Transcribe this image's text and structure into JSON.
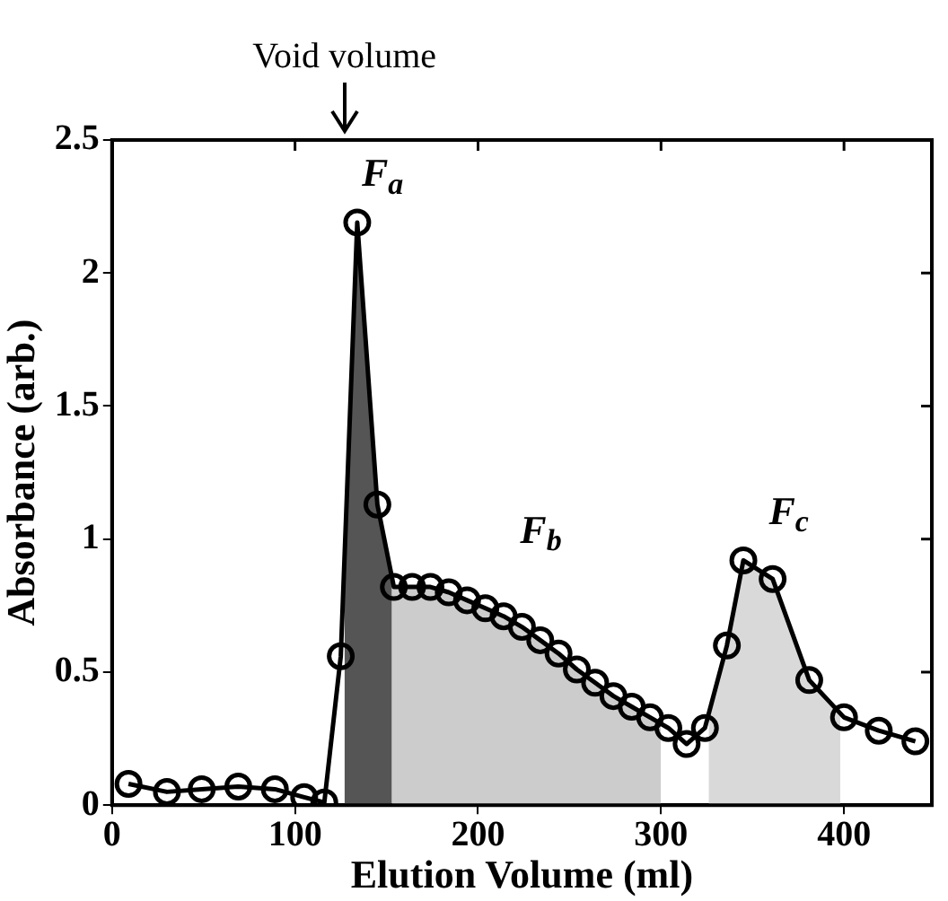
{
  "chart_data": {
    "type": "line",
    "xlabel": "Elution Volume (ml)",
    "ylabel": "Absorbance (arb.)",
    "x": [
      9,
      30,
      49,
      69,
      89,
      105,
      116,
      125,
      134,
      145,
      154,
      164,
      174,
      184,
      194,
      204,
      214,
      224,
      234,
      244,
      254,
      264,
      274,
      284,
      294,
      304,
      314,
      324,
      336,
      345,
      361,
      381,
      400,
      419,
      439
    ],
    "series": [
      {
        "name": "F$_{a}$",
        "type": "area",
        "color": "#555555",
        "marker": "none",
        "x": [
          127,
          134,
          145,
          153
        ],
        "values": [
          0.92,
          2.19,
          1.13,
          0.85
        ]
      },
      {
        "name": "F$_{b}$",
        "type": "area",
        "color": "#cccccc",
        "marker": "none",
        "x": [
          153,
          154,
          164,
          174,
          184,
          194,
          204,
          214,
          224,
          234,
          244,
          254,
          264,
          274,
          284,
          294,
          300
        ],
        "values": [
          0.85,
          0.82,
          0.82,
          0.82,
          0.8,
          0.77,
          0.74,
          0.71,
          0.67,
          0.62,
          0.57,
          0.51,
          0.46,
          0.41,
          0.37,
          0.33,
          0.31
        ]
      },
      {
        "name": "F$_{c}$",
        "type": "area",
        "color": "#d9d9d9",
        "marker": "none",
        "x": [
          326,
          336,
          345,
          361,
          381,
          398
        ],
        "values": [
          0.34,
          0.6,
          0.92,
          0.85,
          0.47,
          0.34
        ]
      },
      {
        "color": "#000000",
        "values": [
          0.08,
          0.05,
          0.06,
          0.07,
          0.06,
          0.03,
          0.01,
          0.56,
          2.19,
          1.13,
          0.82,
          0.82,
          0.82,
          0.8,
          0.77,
          0.74,
          0.71,
          0.67,
          0.62,
          0.57,
          0.51,
          0.46,
          0.41,
          0.37,
          0.33,
          0.29,
          0.23,
          0.29,
          0.6,
          0.92,
          0.85,
          0.47,
          0.33,
          0.28,
          0.24
        ]
      }
    ],
    "xlim": [
      0,
      448
    ],
    "xticks": [
      0,
      100,
      200,
      300,
      400
    ],
    "ylim": [
      0,
      2.5
    ],
    "yticks": [
      0,
      0.5,
      1,
      1.5,
      2,
      2.5
    ],
    "marker": "circle",
    "line_style": "solid",
    "grid": false,
    "legend": false,
    "annotations": [
      "Void volume"
    ]
  }
}
